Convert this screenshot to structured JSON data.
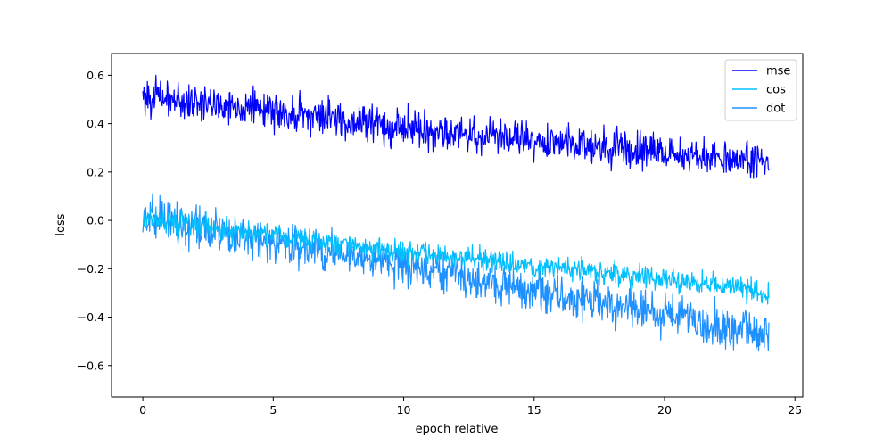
{
  "chart_data": {
    "type": "line",
    "xlabel": "epoch relative",
    "ylabel": "loss",
    "xlim": [
      -1.2,
      25.3
    ],
    "ylim": [
      -0.73,
      0.69
    ],
    "xticks": [
      0,
      5,
      10,
      15,
      20,
      25
    ],
    "yticks": [
      -0.6,
      -0.4,
      -0.2,
      0.0,
      0.2,
      0.4,
      0.6
    ],
    "xtick_labels": [
      "0",
      "5",
      "10",
      "15",
      "20",
      "25"
    ],
    "ytick_labels": [
      "−0.6",
      "−0.4",
      "−0.2",
      "0.0",
      "0.2",
      "0.4",
      "0.6"
    ],
    "grid": false,
    "legend_position": "top-right",
    "series": [
      {
        "name": "mse",
        "color": "#0000ff",
        "x": [
          0,
          0.5,
          1,
          1.5,
          2,
          2.5,
          3,
          3.5,
          4,
          4.5,
          5,
          5.5,
          6,
          6.5,
          7,
          7.5,
          8,
          8.5,
          9,
          9.5,
          10,
          10.5,
          11,
          11.5,
          12,
          12.5,
          13,
          13.5,
          14,
          14.5,
          15,
          15.5,
          16,
          16.5,
          17,
          17.5,
          18,
          18.5,
          19,
          19.5,
          20,
          20.5,
          21,
          21.5,
          22,
          22.5,
          23,
          23.5,
          24
        ],
        "y": [
          0.52,
          0.51,
          0.5,
          0.49,
          0.49,
          0.48,
          0.48,
          0.47,
          0.47,
          0.46,
          0.45,
          0.44,
          0.44,
          0.43,
          0.43,
          0.42,
          0.41,
          0.41,
          0.4,
          0.39,
          0.39,
          0.38,
          0.37,
          0.37,
          0.36,
          0.36,
          0.35,
          0.35,
          0.34,
          0.34,
          0.33,
          0.33,
          0.32,
          0.32,
          0.31,
          0.31,
          0.3,
          0.3,
          0.29,
          0.29,
          0.28,
          0.28,
          0.27,
          0.27,
          0.26,
          0.25,
          0.25,
          0.24,
          0.24
        ],
        "y_band": 0.07
      },
      {
        "name": "cos",
        "color": "#00bfff",
        "x": [
          0,
          0.5,
          1,
          1.5,
          2,
          2.5,
          3,
          3.5,
          4,
          4.5,
          5,
          5.5,
          6,
          6.5,
          7,
          7.5,
          8,
          8.5,
          9,
          9.5,
          10,
          10.5,
          11,
          11.5,
          12,
          12.5,
          13,
          13.5,
          14,
          14.5,
          15,
          15.5,
          16,
          16.5,
          17,
          17.5,
          18,
          18.5,
          19,
          19.5,
          20,
          20.5,
          21,
          21.5,
          22,
          22.5,
          23,
          23.5,
          24
        ],
        "y": [
          0.01,
          0.0,
          -0.01,
          -0.01,
          -0.02,
          -0.03,
          -0.03,
          -0.04,
          -0.05,
          -0.05,
          -0.06,
          -0.07,
          -0.07,
          -0.08,
          -0.09,
          -0.09,
          -0.1,
          -0.11,
          -0.11,
          -0.12,
          -0.13,
          -0.13,
          -0.14,
          -0.14,
          -0.15,
          -0.16,
          -0.16,
          -0.17,
          -0.18,
          -0.18,
          -0.19,
          -0.2,
          -0.2,
          -0.21,
          -0.21,
          -0.22,
          -0.22,
          -0.23,
          -0.23,
          -0.24,
          -0.25,
          -0.25,
          -0.26,
          -0.26,
          -0.27,
          -0.27,
          -0.28,
          -0.29,
          -0.3
        ],
        "y_band": 0.045
      },
      {
        "name": "dot",
        "color": "#1e90ff",
        "x": [
          0,
          0.5,
          1,
          1.5,
          2,
          2.5,
          3,
          3.5,
          4,
          4.5,
          5,
          5.5,
          6,
          6.5,
          7,
          7.5,
          8,
          8.5,
          9,
          9.5,
          10,
          10.5,
          11,
          11.5,
          12,
          12.5,
          13,
          13.5,
          14,
          14.5,
          15,
          15.5,
          16,
          16.5,
          17,
          17.5,
          18,
          18.5,
          19,
          19.5,
          20,
          20.5,
          21,
          21.5,
          22,
          22.5,
          23,
          23.5,
          24
        ],
        "y": [
          0.01,
          0.0,
          -0.01,
          -0.02,
          -0.03,
          -0.04,
          -0.05,
          -0.06,
          -0.07,
          -0.08,
          -0.09,
          -0.1,
          -0.11,
          -0.12,
          -0.13,
          -0.14,
          -0.15,
          -0.16,
          -0.17,
          -0.18,
          -0.19,
          -0.2,
          -0.21,
          -0.22,
          -0.23,
          -0.24,
          -0.25,
          -0.26,
          -0.27,
          -0.28,
          -0.29,
          -0.3,
          -0.31,
          -0.32,
          -0.33,
          -0.34,
          -0.35,
          -0.36,
          -0.37,
          -0.38,
          -0.39,
          -0.4,
          -0.41,
          -0.42,
          -0.43,
          -0.44,
          -0.45,
          -0.46,
          -0.47
        ],
        "y_band": 0.08
      }
    ]
  }
}
